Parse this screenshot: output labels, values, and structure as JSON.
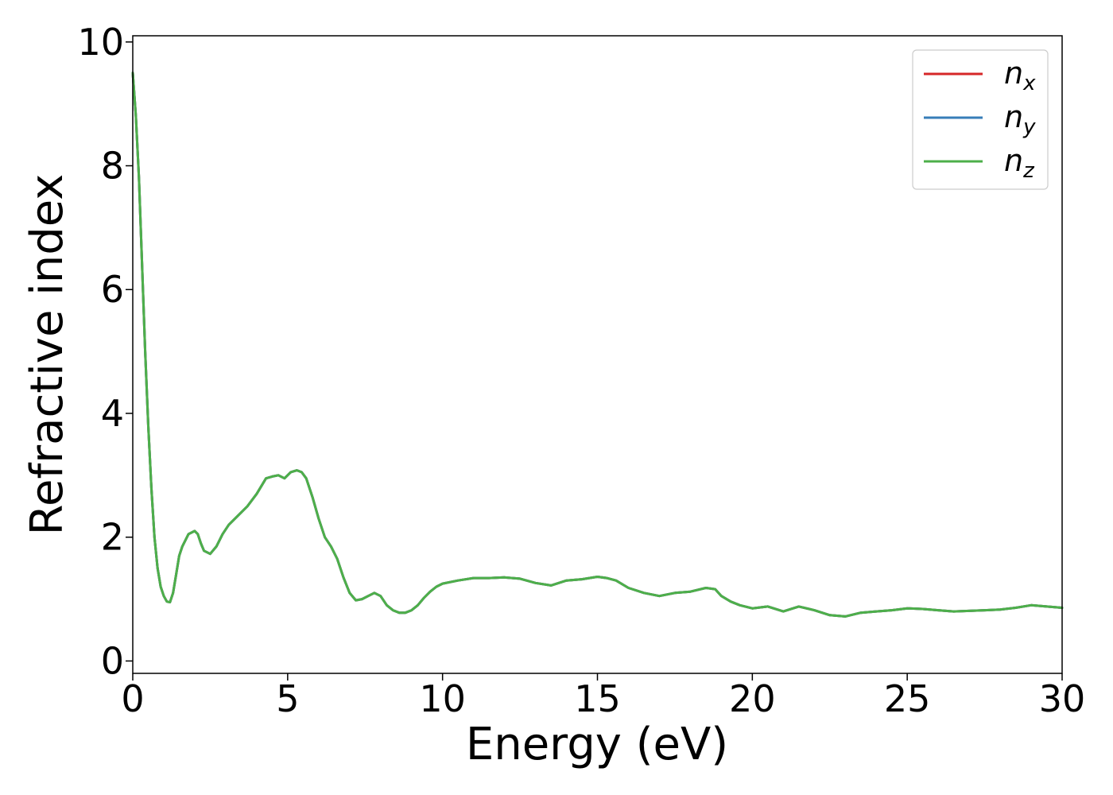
{
  "chart_data": {
    "type": "line",
    "xlabel": "Energy (eV)",
    "ylabel": "Refractive index",
    "xlim": [
      0,
      30
    ],
    "ylim": [
      -0.2,
      10.1
    ],
    "xticks": [
      "0",
      "5",
      "10",
      "15",
      "20",
      "25",
      "30"
    ],
    "yticks": [
      "0",
      "2",
      "4",
      "6",
      "8",
      "10"
    ],
    "grid": false,
    "legend_position": "top-right",
    "series": [
      {
        "name": "n_x",
        "label_main": "n",
        "label_sub": "x",
        "color": "#d62728",
        "x": [
          0,
          0.1,
          0.2,
          0.3,
          0.4,
          0.5,
          0.6,
          0.7,
          0.8,
          0.9,
          1.0,
          1.1,
          1.2,
          1.3,
          1.4,
          1.5,
          1.6,
          1.8,
          2.0,
          2.1,
          2.2,
          2.3,
          2.5,
          2.7,
          2.9,
          3.1,
          3.4,
          3.7,
          4.0,
          4.3,
          4.5,
          4.7,
          4.9,
          5.1,
          5.3,
          5.45,
          5.6,
          5.8,
          6.0,
          6.2,
          6.4,
          6.6,
          6.8,
          7.0,
          7.2,
          7.4,
          7.6,
          7.8,
          8.0,
          8.2,
          8.4,
          8.6,
          8.8,
          9.0,
          9.2,
          9.4,
          9.6,
          9.8,
          10.0,
          10.5,
          11.0,
          11.5,
          12.0,
          12.5,
          13.0,
          13.5,
          14.0,
          14.5,
          15.0,
          15.3,
          15.6,
          16.0,
          16.5,
          17.0,
          17.5,
          18.0,
          18.5,
          18.8,
          19.0,
          19.3,
          19.6,
          20.0,
          20.5,
          21.0,
          21.5,
          22.0,
          22.5,
          23.0,
          23.5,
          24.0,
          24.5,
          25.0,
          25.5,
          26.0,
          26.5,
          27.0,
          27.5,
          28.0,
          28.5,
          29.0,
          29.5,
          30.0
        ],
        "y": [
          9.5,
          8.8,
          7.8,
          6.4,
          5.0,
          3.8,
          2.8,
          2.0,
          1.5,
          1.2,
          1.05,
          0.96,
          0.95,
          1.1,
          1.4,
          1.7,
          1.85,
          2.05,
          2.1,
          2.05,
          1.9,
          1.78,
          1.73,
          1.85,
          2.05,
          2.2,
          2.35,
          2.5,
          2.7,
          2.95,
          2.98,
          3.0,
          2.95,
          3.05,
          3.08,
          3.05,
          2.95,
          2.65,
          2.3,
          2.0,
          1.85,
          1.65,
          1.35,
          1.1,
          0.98,
          1.0,
          1.05,
          1.1,
          1.05,
          0.9,
          0.82,
          0.78,
          0.78,
          0.82,
          0.9,
          1.02,
          1.12,
          1.2,
          1.25,
          1.3,
          1.34,
          1.34,
          1.35,
          1.33,
          1.26,
          1.22,
          1.3,
          1.32,
          1.36,
          1.34,
          1.3,
          1.18,
          1.1,
          1.05,
          1.1,
          1.12,
          1.18,
          1.16,
          1.05,
          0.96,
          0.9,
          0.85,
          0.88,
          0.8,
          0.88,
          0.82,
          0.74,
          0.72,
          0.78,
          0.8,
          0.82,
          0.85,
          0.84,
          0.82,
          0.8,
          0.81,
          0.82,
          0.83,
          0.86,
          0.9,
          0.88,
          0.86
        ]
      },
      {
        "name": "n_y",
        "label_main": "n",
        "label_sub": "y",
        "color": "#377eb8",
        "x": [
          0,
          0.1,
          0.2,
          0.3,
          0.4,
          0.5,
          0.6,
          0.7,
          0.8,
          0.9,
          1.0,
          1.1,
          1.2,
          1.3,
          1.4,
          1.5,
          1.6,
          1.8,
          2.0,
          2.1,
          2.2,
          2.3,
          2.5,
          2.7,
          2.9,
          3.1,
          3.4,
          3.7,
          4.0,
          4.3,
          4.5,
          4.7,
          4.9,
          5.1,
          5.3,
          5.45,
          5.6,
          5.8,
          6.0,
          6.2,
          6.4,
          6.6,
          6.8,
          7.0,
          7.2,
          7.4,
          7.6,
          7.8,
          8.0,
          8.2,
          8.4,
          8.6,
          8.8,
          9.0,
          9.2,
          9.4,
          9.6,
          9.8,
          10.0,
          10.5,
          11.0,
          11.5,
          12.0,
          12.5,
          13.0,
          13.5,
          14.0,
          14.5,
          15.0,
          15.3,
          15.6,
          16.0,
          16.5,
          17.0,
          17.5,
          18.0,
          18.5,
          18.8,
          19.0,
          19.3,
          19.6,
          20.0,
          20.5,
          21.0,
          21.5,
          22.0,
          22.5,
          23.0,
          23.5,
          24.0,
          24.5,
          25.0,
          25.5,
          26.0,
          26.5,
          27.0,
          27.5,
          28.0,
          28.5,
          29.0,
          29.5,
          30.0
        ],
        "y": [
          9.5,
          8.8,
          7.8,
          6.4,
          5.0,
          3.8,
          2.8,
          2.0,
          1.5,
          1.2,
          1.05,
          0.96,
          0.95,
          1.1,
          1.4,
          1.7,
          1.85,
          2.05,
          2.1,
          2.05,
          1.9,
          1.78,
          1.73,
          1.85,
          2.05,
          2.2,
          2.35,
          2.5,
          2.7,
          2.95,
          2.98,
          3.0,
          2.95,
          3.05,
          3.08,
          3.05,
          2.95,
          2.65,
          2.3,
          2.0,
          1.85,
          1.65,
          1.35,
          1.1,
          0.98,
          1.0,
          1.05,
          1.1,
          1.05,
          0.9,
          0.82,
          0.78,
          0.78,
          0.82,
          0.9,
          1.02,
          1.12,
          1.2,
          1.25,
          1.3,
          1.34,
          1.34,
          1.35,
          1.33,
          1.26,
          1.22,
          1.3,
          1.32,
          1.36,
          1.34,
          1.3,
          1.18,
          1.1,
          1.05,
          1.1,
          1.12,
          1.18,
          1.16,
          1.05,
          0.96,
          0.9,
          0.85,
          0.88,
          0.8,
          0.88,
          0.82,
          0.74,
          0.72,
          0.78,
          0.8,
          0.82,
          0.85,
          0.84,
          0.82,
          0.8,
          0.81,
          0.82,
          0.83,
          0.86,
          0.9,
          0.88,
          0.86
        ]
      },
      {
        "name": "n_z",
        "label_main": "n",
        "label_sub": "z",
        "color": "#4daf4a",
        "x": [
          0,
          0.1,
          0.2,
          0.3,
          0.4,
          0.5,
          0.6,
          0.7,
          0.8,
          0.9,
          1.0,
          1.1,
          1.2,
          1.3,
          1.4,
          1.5,
          1.6,
          1.8,
          2.0,
          2.1,
          2.2,
          2.3,
          2.5,
          2.7,
          2.9,
          3.1,
          3.4,
          3.7,
          4.0,
          4.3,
          4.5,
          4.7,
          4.9,
          5.1,
          5.3,
          5.45,
          5.6,
          5.8,
          6.0,
          6.2,
          6.4,
          6.6,
          6.8,
          7.0,
          7.2,
          7.4,
          7.6,
          7.8,
          8.0,
          8.2,
          8.4,
          8.6,
          8.8,
          9.0,
          9.2,
          9.4,
          9.6,
          9.8,
          10.0,
          10.5,
          11.0,
          11.5,
          12.0,
          12.5,
          13.0,
          13.5,
          14.0,
          14.5,
          15.0,
          15.3,
          15.6,
          16.0,
          16.5,
          17.0,
          17.5,
          18.0,
          18.5,
          18.8,
          19.0,
          19.3,
          19.6,
          20.0,
          20.5,
          21.0,
          21.5,
          22.0,
          22.5,
          23.0,
          23.5,
          24.0,
          24.5,
          25.0,
          25.5,
          26.0,
          26.5,
          27.0,
          27.5,
          28.0,
          28.5,
          29.0,
          29.5,
          30.0
        ],
        "y": [
          9.5,
          8.8,
          7.8,
          6.4,
          5.0,
          3.8,
          2.8,
          2.0,
          1.5,
          1.2,
          1.05,
          0.96,
          0.95,
          1.1,
          1.4,
          1.7,
          1.85,
          2.05,
          2.1,
          2.05,
          1.9,
          1.78,
          1.73,
          1.85,
          2.05,
          2.2,
          2.35,
          2.5,
          2.7,
          2.95,
          2.98,
          3.0,
          2.95,
          3.05,
          3.08,
          3.05,
          2.95,
          2.65,
          2.3,
          2.0,
          1.85,
          1.65,
          1.35,
          1.1,
          0.98,
          1.0,
          1.05,
          1.1,
          1.05,
          0.9,
          0.82,
          0.78,
          0.78,
          0.82,
          0.9,
          1.02,
          1.12,
          1.2,
          1.25,
          1.3,
          1.34,
          1.34,
          1.35,
          1.33,
          1.26,
          1.22,
          1.3,
          1.32,
          1.36,
          1.34,
          1.3,
          1.18,
          1.1,
          1.05,
          1.1,
          1.12,
          1.18,
          1.16,
          1.05,
          0.96,
          0.9,
          0.85,
          0.88,
          0.8,
          0.88,
          0.82,
          0.74,
          0.72,
          0.78,
          0.8,
          0.82,
          0.85,
          0.84,
          0.82,
          0.8,
          0.81,
          0.82,
          0.83,
          0.86,
          0.9,
          0.88,
          0.86
        ]
      }
    ]
  }
}
